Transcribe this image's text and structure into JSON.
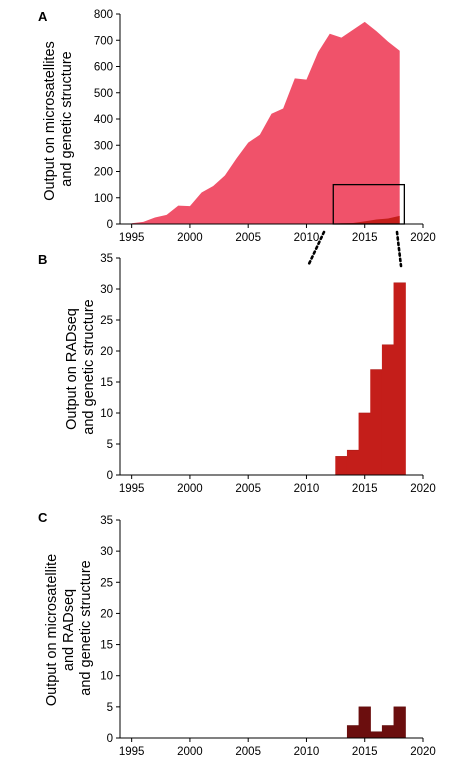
{
  "figure": {
    "panels": [
      {
        "letter": "A",
        "ylabel_lines": [
          "Output on microsatellites",
          "and genetic structure"
        ]
      },
      {
        "letter": "B",
        "ylabel_lines": [
          "Output on RADseq",
          "and genetic structure"
        ]
      },
      {
        "letter": "C",
        "ylabel_lines": [
          "Output on microsatellite",
          "and RADseq",
          "and genetic structure"
        ]
      }
    ]
  },
  "colors": {
    "microsat": "#f0526a",
    "radseq": "#c41e1a",
    "both": "#6b0e0e"
  },
  "chart_data": [
    {
      "type": "area",
      "panel": "A",
      "ylabel": "Output on microsatellites and genetic structure",
      "xlim": [
        1994,
        2020
      ],
      "ylim": [
        0,
        800
      ],
      "xticks": [
        1995,
        2000,
        2005,
        2010,
        2015,
        2020
      ],
      "yticks": [
        0,
        100,
        200,
        300,
        400,
        500,
        600,
        700,
        800
      ],
      "grid": false,
      "series": [
        {
          "x": [
            1995,
            1996,
            1997,
            1998,
            1999,
            2000,
            2001,
            2002,
            2003,
            2004,
            2005,
            2006,
            2007,
            2008,
            2009,
            2010,
            2011,
            2012,
            2013,
            2014,
            2015,
            2016,
            2017,
            2018
          ],
          "values": [
            3,
            8,
            25,
            35,
            70,
            68,
            120,
            145,
            185,
            250,
            310,
            340,
            420,
            440,
            555,
            550,
            655,
            725,
            710,
            740,
            770,
            735,
            695,
            660
          ]
        },
        {
          "x": [
            2012,
            2013,
            2014,
            2015,
            2016,
            2017,
            2018
          ],
          "values": [
            0,
            3,
            4,
            10,
            17,
            21,
            31
          ]
        }
      ],
      "annotations": [
        "zoom box 2012–2018, 0–150"
      ]
    },
    {
      "type": "bar",
      "panel": "B",
      "ylabel": "Output on RADseq and genetic structure",
      "xlim": [
        1994,
        2020
      ],
      "ylim": [
        0,
        35
      ],
      "xticks": [
        1995,
        2000,
        2005,
        2010,
        2015,
        2020
      ],
      "yticks": [
        0,
        5,
        10,
        15,
        20,
        25,
        30,
        35
      ],
      "grid": false,
      "categories": [
        2013,
        2014,
        2015,
        2016,
        2017,
        2018
      ],
      "values": [
        3,
        4,
        10,
        17,
        21,
        31
      ]
    },
    {
      "type": "bar",
      "panel": "C",
      "ylabel": "Output on microsatellite and RADseq and genetic structure",
      "xlim": [
        1994,
        2020
      ],
      "ylim": [
        0,
        35
      ],
      "xticks": [
        1995,
        2000,
        2005,
        2010,
        2015,
        2020
      ],
      "yticks": [
        0,
        5,
        10,
        15,
        20,
        25,
        30,
        35
      ],
      "grid": false,
      "categories": [
        2014,
        2015,
        2016,
        2017,
        2018
      ],
      "values": [
        2,
        5,
        1,
        2,
        5
      ]
    }
  ]
}
